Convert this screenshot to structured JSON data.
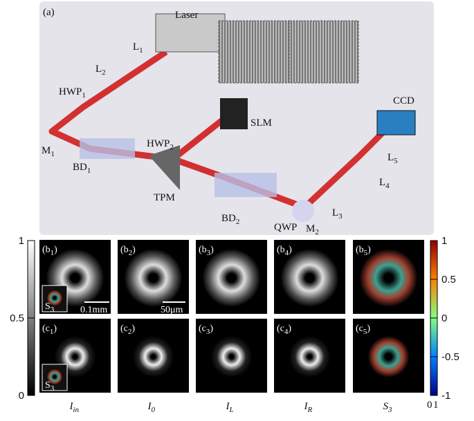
{
  "panel_a": {
    "label": "(a)",
    "components": [
      {
        "main": "Laser"
      },
      {
        "main": "L",
        "sub": "1"
      },
      {
        "main": "L",
        "sub": "2"
      },
      {
        "main": "HWP",
        "sub": "1"
      },
      {
        "main": "M",
        "sub": "1"
      },
      {
        "main": "BD",
        "sub": "1"
      },
      {
        "main": "HWP",
        "sub": "2"
      },
      {
        "main": "TPM"
      },
      {
        "main": "SLM"
      },
      {
        "main": "BD",
        "sub": "2"
      },
      {
        "main": "QWP"
      },
      {
        "main": "M",
        "sub": "2"
      },
      {
        "main": "L",
        "sub": "3"
      },
      {
        "main": "L",
        "sub": "4"
      },
      {
        "main": "L",
        "sub": "5"
      },
      {
        "main": "CCD"
      }
    ]
  },
  "panels": {
    "row_b": [
      {
        "main": "(b",
        "sub": "1",
        "end": ")"
      },
      {
        "main": "(b",
        "sub": "2",
        "end": ")"
      },
      {
        "main": "(b",
        "sub": "3",
        "end": ")"
      },
      {
        "main": "(b",
        "sub": "4",
        "end": ")"
      },
      {
        "main": "(b",
        "sub": "5",
        "end": ")"
      }
    ],
    "row_c": [
      {
        "main": "(c",
        "sub": "1",
        "end": ")"
      },
      {
        "main": "(c",
        "sub": "2",
        "end": ")"
      },
      {
        "main": "(c",
        "sub": "3",
        "end": ")"
      },
      {
        "main": "(c",
        "sub": "4",
        "end": ")"
      },
      {
        "main": "(c",
        "sub": "5",
        "end": ")"
      }
    ],
    "scale_bars": [
      "0.1mm",
      "50μm"
    ],
    "inset": {
      "main": "S",
      "sub": "3"
    },
    "columns": [
      {
        "main": "I",
        "sub": "in"
      },
      {
        "main": "I",
        "sub": "0"
      },
      {
        "main": "I",
        "sub": "L"
      },
      {
        "main": "I",
        "sub": "R"
      },
      {
        "main": "S",
        "sub": "3"
      }
    ]
  },
  "colorbar_left": {
    "ticks": [
      1,
      0.5,
      0
    ]
  },
  "colorbar_right": {
    "ticks": [
      1,
      0.5,
      0,
      -0.5,
      -1
    ],
    "bottom_labels": [
      "0",
      "1"
    ]
  }
}
